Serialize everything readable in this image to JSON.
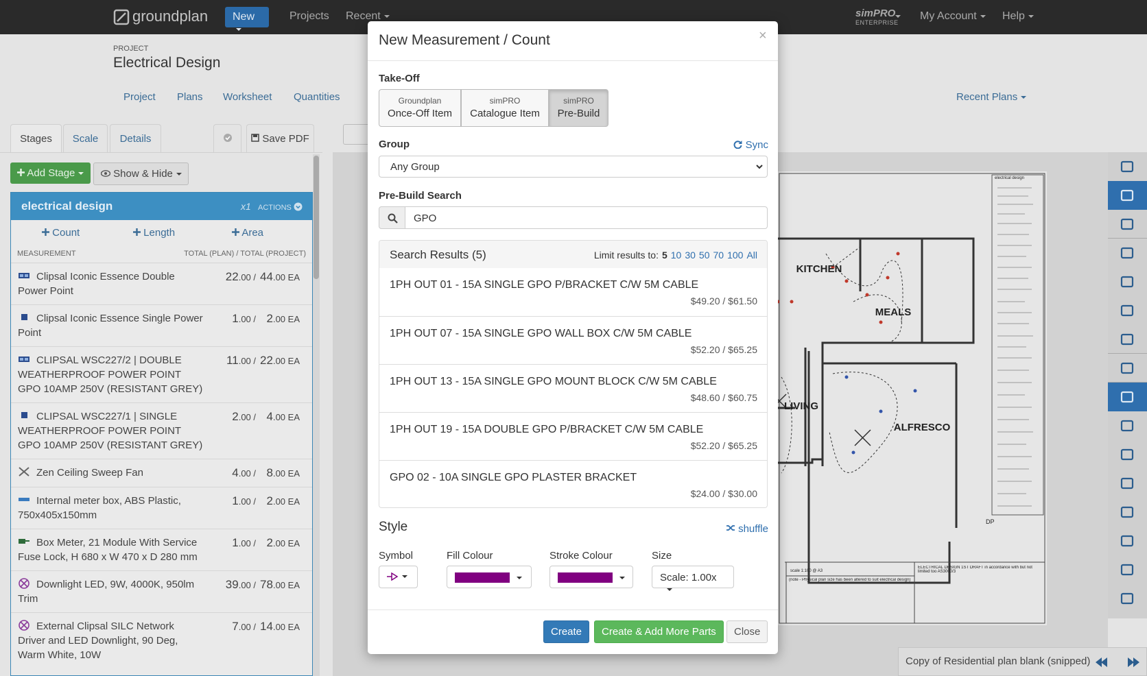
{
  "navbar": {
    "brand": "groundplan",
    "new": "New",
    "projects": "Projects",
    "recent": "Recent",
    "simpro": "simPRO",
    "enterprise": "ENTERPRISE",
    "account": "My Account",
    "help": "Help"
  },
  "project": {
    "label": "PROJECT",
    "title": "Electrical Design",
    "tabs": [
      "Project",
      "Plans",
      "Worksheet",
      "Quantities"
    ],
    "recent_plans": "Recent Plans"
  },
  "sidebar": {
    "tabs": [
      "Stages",
      "Scale",
      "Details"
    ],
    "save_pdf": "Save PDF",
    "add_stage": "Add Stage",
    "show_hide": "Show & Hide",
    "stage": {
      "name": "electrical design",
      "multiplier": "x1",
      "actions": "ACTIONS"
    },
    "tools": [
      "Count",
      "Length",
      "Area"
    ],
    "col_measurement": "MEASUREMENT",
    "col_totals": "TOTAL (PLAN) / TOTAL (PROJECT)",
    "rows": [
      {
        "name": "Clipsal Iconic Essence Double Power Point",
        "plan": [
          "22",
          ".00 /"
        ],
        "project": [
          "44",
          ".00 EA"
        ]
      },
      {
        "name": "Clipsal Iconic Essence Single Power Point",
        "plan": [
          "1",
          ".00 /"
        ],
        "project": [
          "2",
          ".00 EA"
        ]
      },
      {
        "name": "CLIPSAL WSC227/2 | DOUBLE WEATHERPROOF POWER POINT GPO 10AMP 250V (RESISTANT GREY)",
        "plan": [
          "11",
          ".00 /"
        ],
        "project": [
          "22",
          ".00 EA"
        ]
      },
      {
        "name": "CLIPSAL WSC227/1 | SINGLE WEATHERPROOF POWER POINT GPO 10AMP 250V (RESISTANT GREY)",
        "plan": [
          "2",
          ".00 /"
        ],
        "project": [
          "4",
          ".00 EA"
        ]
      },
      {
        "name": "Zen Ceiling Sweep Fan",
        "plan": [
          "4",
          ".00 /"
        ],
        "project": [
          "8",
          ".00 EA"
        ]
      },
      {
        "name": "Internal meter box, ABS Plastic, 750x405x150mm",
        "plan": [
          "1",
          ".00 /"
        ],
        "project": [
          "2",
          ".00 EA"
        ]
      },
      {
        "name": "Box Meter, 21 Module With Service Fuse Lock, H 680 x W 470 x D 280 mm",
        "plan": [
          "1",
          ".00 /"
        ],
        "project": [
          "2",
          ".00 EA"
        ]
      },
      {
        "name": "Downlight LED, 9W, 4000K, 950lm Trim",
        "plan": [
          "39",
          ".00 /"
        ],
        "project": [
          "78",
          ".00 EA"
        ]
      },
      {
        "name": "External Clipsal SILC Network Driver and LED Downlight, 90 Deg, Warm White, 10W",
        "plan": [
          "7",
          ".00 /"
        ],
        "project": [
          "14",
          ".00 EA"
        ]
      }
    ]
  },
  "modal": {
    "title": "New Measurement / Count",
    "close": "×",
    "takeoff_label": "Take-Off",
    "takeoff_options": [
      {
        "top": "Groundplan",
        "bottom": "Once-Off Item",
        "active": false
      },
      {
        "top": "simPRO",
        "bottom": "Catalogue Item",
        "active": false
      },
      {
        "top": "simPRO",
        "bottom": "Pre-Build",
        "active": true
      }
    ],
    "group_label": "Group",
    "sync": "Sync",
    "group_value": "Any Group",
    "search_label": "Pre-Build Search",
    "search_value": "GPO",
    "results_title": "Search Results (5)",
    "limit_label": "Limit results to:",
    "limits": [
      "5",
      "10",
      "30",
      "50",
      "70",
      "100",
      "All"
    ],
    "selected_limit": "5",
    "results": [
      {
        "name": "1PH OUT 01 - 15A SINGLE GPO P/BRACKET C/W 5M CABLE",
        "price": "$49.20 / $61.50"
      },
      {
        "name": "1PH OUT 07 - 15A SINGLE GPO WALL BOX C/W 5M CABLE",
        "price": "$52.20 / $65.25"
      },
      {
        "name": "1PH OUT 13 - 15A SINGLE GPO MOUNT BLOCK C/W 5M CABLE",
        "price": "$48.60 / $60.75"
      },
      {
        "name": "1PH OUT 19 - 15A DOUBLE GPO P/BRACKET C/W 5M CABLE",
        "price": "$52.20 / $65.25"
      },
      {
        "name": "GPO 02 - 10A SINGLE GPO PLASTER BRACKET",
        "price": "$24.00 / $30.00"
      }
    ],
    "style_label": "Style",
    "shuffle": "shuffle",
    "symbol_label": "Symbol",
    "fill_label": "Fill Colour",
    "stroke_label": "Stroke Colour",
    "size_label": "Size",
    "fill_color": "#800080",
    "stroke_color": "#800080",
    "size_value": "Scale: 1.00x",
    "buttons": {
      "create": "Create",
      "create_more": "Create & Add More Parts",
      "close": "Close"
    }
  },
  "plan": {
    "rooms": [
      "KITCHEN",
      "MEALS",
      "LIVING",
      "ALFRESCO"
    ],
    "dp": "DP",
    "legend_title": "electrical design",
    "scale_note": "scale 1:100 @ A3",
    "plan_note": "(note - Physical plan size has been altered to suit electrical design)",
    "title_block": "ELECTRICAL DESIGN 1ST DRAFT in accordance with but not limited too AS3000/3",
    "caption": "Copy of Residential plan blank (snipped)"
  }
}
